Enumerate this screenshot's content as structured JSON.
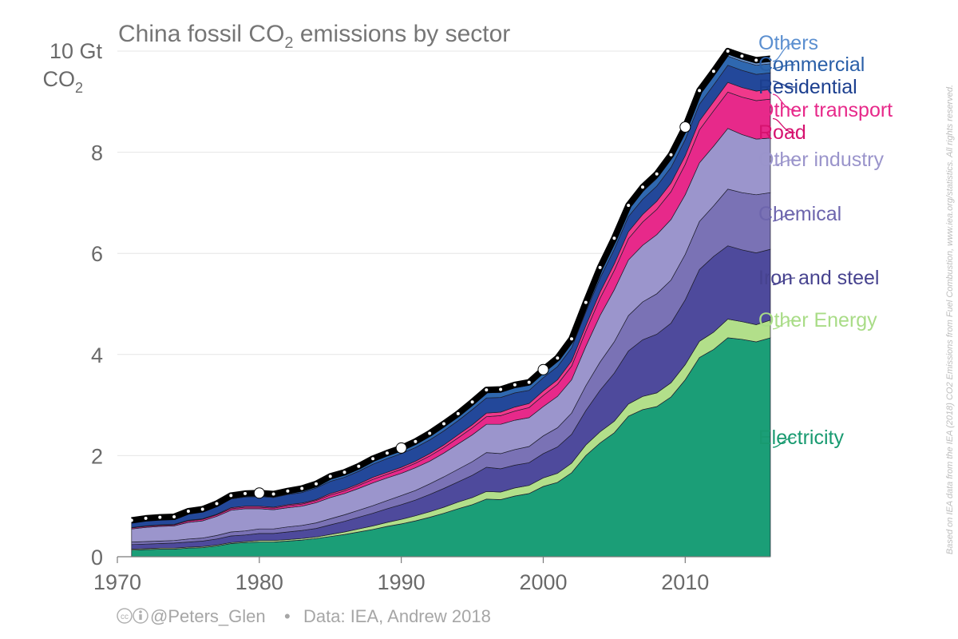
{
  "chart_data": {
    "type": "area",
    "title_main": "China fossil CO",
    "title_sub": "2",
    "title_rest": " emissions by sector",
    "ylabel_line1": "10 Gt",
    "ylabel_line2_main": "CO",
    "ylabel_line2_sub": "2",
    "ylim": [
      0,
      10
    ],
    "xlim": [
      1970,
      2016
    ],
    "yticks": [
      "0",
      "2",
      "4",
      "6",
      "8"
    ],
    "xticks": [
      "1970",
      "1980",
      "1990",
      "2000",
      "2010"
    ],
    "grid": true,
    "stacked": true,
    "x": [
      1971,
      1972,
      1973,
      1974,
      1975,
      1976,
      1977,
      1978,
      1979,
      1980,
      1981,
      1982,
      1983,
      1984,
      1985,
      1986,
      1987,
      1988,
      1989,
      1990,
      1991,
      1992,
      1993,
      1994,
      1995,
      1996,
      1997,
      1998,
      1999,
      2000,
      2001,
      2002,
      2003,
      2004,
      2005,
      2006,
      2007,
      2008,
      2009,
      2010,
      2011,
      2012,
      2013,
      2014,
      2015,
      2016
    ],
    "series": [
      {
        "name": "Electricity",
        "color": "#1b9e77",
        "values": [
          0.13,
          0.14,
          0.15,
          0.15,
          0.17,
          0.18,
          0.21,
          0.26,
          0.28,
          0.29,
          0.29,
          0.31,
          0.33,
          0.36,
          0.4,
          0.44,
          0.49,
          0.54,
          0.6,
          0.65,
          0.71,
          0.78,
          0.86,
          0.95,
          1.03,
          1.14,
          1.13,
          1.2,
          1.25,
          1.39,
          1.47,
          1.66,
          2.0,
          2.25,
          2.45,
          2.78,
          2.91,
          2.97,
          3.16,
          3.5,
          3.94,
          4.1,
          4.33,
          4.3,
          4.25,
          4.33
        ]
      },
      {
        "name": "Other Energy",
        "color": "#b2df8a",
        "values": [
          0.02,
          0.02,
          0.02,
          0.02,
          0.02,
          0.02,
          0.02,
          0.02,
          0.02,
          0.03,
          0.03,
          0.03,
          0.03,
          0.03,
          0.04,
          0.05,
          0.06,
          0.07,
          0.08,
          0.09,
          0.1,
          0.11,
          0.12,
          0.13,
          0.14,
          0.15,
          0.15,
          0.16,
          0.16,
          0.17,
          0.18,
          0.19,
          0.21,
          0.22,
          0.23,
          0.24,
          0.26,
          0.27,
          0.28,
          0.3,
          0.32,
          0.34,
          0.37,
          0.35,
          0.34,
          0.35
        ]
      },
      {
        "name": "Iron and steel",
        "color": "#4e4a9c",
        "values": [
          0.09,
          0.09,
          0.09,
          0.1,
          0.1,
          0.11,
          0.12,
          0.13,
          0.13,
          0.14,
          0.14,
          0.15,
          0.16,
          0.17,
          0.19,
          0.21,
          0.23,
          0.25,
          0.27,
          0.29,
          0.31,
          0.34,
          0.37,
          0.4,
          0.44,
          0.48,
          0.46,
          0.45,
          0.45,
          0.48,
          0.52,
          0.57,
          0.68,
          0.82,
          0.95,
          1.05,
          1.12,
          1.16,
          1.18,
          1.28,
          1.42,
          1.5,
          1.45,
          1.42,
          1.42,
          1.4
        ]
      },
      {
        "name": "Chemical",
        "color": "#7a72b5",
        "values": [
          0.05,
          0.05,
          0.05,
          0.05,
          0.06,
          0.06,
          0.07,
          0.08,
          0.08,
          0.09,
          0.09,
          0.1,
          0.1,
          0.11,
          0.12,
          0.13,
          0.14,
          0.15,
          0.16,
          0.18,
          0.19,
          0.21,
          0.23,
          0.25,
          0.27,
          0.29,
          0.3,
          0.31,
          0.32,
          0.35,
          0.38,
          0.42,
          0.49,
          0.56,
          0.62,
          0.7,
          0.75,
          0.8,
          0.85,
          0.9,
          0.95,
          1.0,
          1.12,
          1.13,
          1.15,
          1.12
        ]
      },
      {
        "name": "Other industry",
        "color": "#9b95cc",
        "values": [
          0.26,
          0.28,
          0.29,
          0.29,
          0.33,
          0.34,
          0.38,
          0.43,
          0.44,
          0.4,
          0.38,
          0.38,
          0.38,
          0.4,
          0.42,
          0.42,
          0.43,
          0.45,
          0.45,
          0.44,
          0.45,
          0.45,
          0.47,
          0.5,
          0.53,
          0.56,
          0.58,
          0.58,
          0.57,
          0.58,
          0.62,
          0.66,
          0.78,
          0.92,
          1.03,
          1.1,
          1.12,
          1.17,
          1.2,
          1.18,
          1.16,
          1.18,
          1.2,
          1.15,
          1.1,
          1.08
        ]
      },
      {
        "name": "Road",
        "color": "#e7298a",
        "values": [
          0.02,
          0.02,
          0.02,
          0.02,
          0.03,
          0.03,
          0.03,
          0.03,
          0.03,
          0.03,
          0.03,
          0.04,
          0.04,
          0.04,
          0.05,
          0.05,
          0.06,
          0.07,
          0.07,
          0.08,
          0.09,
          0.1,
          0.11,
          0.12,
          0.14,
          0.15,
          0.17,
          0.18,
          0.2,
          0.22,
          0.24,
          0.27,
          0.3,
          0.34,
          0.38,
          0.42,
          0.46,
          0.5,
          0.55,
          0.6,
          0.65,
          0.7,
          0.72,
          0.74,
          0.76,
          0.77
        ]
      },
      {
        "name": "Other transport",
        "color": "#f0398b",
        "values": [
          0.01,
          0.01,
          0.01,
          0.01,
          0.01,
          0.01,
          0.01,
          0.02,
          0.02,
          0.02,
          0.02,
          0.02,
          0.02,
          0.02,
          0.03,
          0.03,
          0.03,
          0.04,
          0.04,
          0.04,
          0.04,
          0.05,
          0.05,
          0.06,
          0.06,
          0.07,
          0.07,
          0.08,
          0.08,
          0.09,
          0.09,
          0.1,
          0.11,
          0.12,
          0.13,
          0.14,
          0.15,
          0.16,
          0.17,
          0.17,
          0.18,
          0.18,
          0.19,
          0.19,
          0.19,
          0.19
        ]
      },
      {
        "name": "Residential",
        "color": "#23489a",
        "values": [
          0.1,
          0.11,
          0.11,
          0.11,
          0.13,
          0.14,
          0.15,
          0.17,
          0.18,
          0.19,
          0.19,
          0.2,
          0.21,
          0.23,
          0.24,
          0.24,
          0.25,
          0.26,
          0.27,
          0.27,
          0.27,
          0.27,
          0.28,
          0.28,
          0.3,
          0.3,
          0.29,
          0.28,
          0.26,
          0.26,
          0.26,
          0.26,
          0.27,
          0.28,
          0.29,
          0.3,
          0.3,
          0.3,
          0.31,
          0.32,
          0.33,
          0.33,
          0.34,
          0.34,
          0.33,
          0.33
        ]
      },
      {
        "name": "Commercial",
        "color": "#2f68b0",
        "values": [
          0.02,
          0.02,
          0.02,
          0.02,
          0.03,
          0.03,
          0.03,
          0.04,
          0.04,
          0.04,
          0.04,
          0.04,
          0.05,
          0.05,
          0.06,
          0.06,
          0.06,
          0.07,
          0.07,
          0.07,
          0.08,
          0.08,
          0.09,
          0.09,
          0.1,
          0.1,
          0.1,
          0.1,
          0.1,
          0.1,
          0.11,
          0.11,
          0.12,
          0.13,
          0.14,
          0.14,
          0.15,
          0.15,
          0.16,
          0.16,
          0.17,
          0.17,
          0.18,
          0.18,
          0.18,
          0.18
        ]
      },
      {
        "name": "Others",
        "color": "#6b96cf",
        "values": [
          0.02,
          0.02,
          0.02,
          0.02,
          0.02,
          0.02,
          0.03,
          0.03,
          0.03,
          0.03,
          0.03,
          0.03,
          0.03,
          0.03,
          0.04,
          0.04,
          0.04,
          0.04,
          0.04,
          0.04,
          0.04,
          0.05,
          0.05,
          0.05,
          0.05,
          0.06,
          0.06,
          0.06,
          0.06,
          0.06,
          0.06,
          0.07,
          0.07,
          0.08,
          0.08,
          0.08,
          0.09,
          0.09,
          0.09,
          0.09,
          0.1,
          0.1,
          0.1,
          0.1,
          0.1,
          0.1
        ]
      }
    ],
    "total_marker_years": [
      1980,
      1990,
      2000,
      2010
    ],
    "legend": [
      {
        "label": "Others",
        "color": "#5b8fd0",
        "series_index": 9
      },
      {
        "label": "Commercial",
        "color": "#2a5fa8",
        "series_index": 8
      },
      {
        "label": "Residential",
        "color": "#1c3f8f",
        "series_index": 7
      },
      {
        "label": "Other transport",
        "color": "#e7298a",
        "series_index": 6
      },
      {
        "label": "Road",
        "color": "#d6126f",
        "series_index": 5
      },
      {
        "label": "Other industry",
        "color": "#9a94cb",
        "series_index": 4
      },
      {
        "label": "Chemical",
        "color": "#6d65ad",
        "series_index": 3
      },
      {
        "label": "Iron and steel",
        "color": "#47438f",
        "series_index": 2
      },
      {
        "label": "Other Energy",
        "color": "#a9dc87",
        "series_index": 1
      },
      {
        "label": "Electricity",
        "color": "#189a70",
        "series_index": 0
      }
    ],
    "legend_placement": "right"
  },
  "credit": {
    "icons": "cc-by-icons",
    "author": "@Peters_Glen",
    "separator": "•",
    "data_source": "Data: IEA, Andrew 2018"
  },
  "source_note": "Based on IEA data from the IEA (2018) CO2 Emissions from Fuel Combustion, www.iea.org/statistics. All rights reserved."
}
